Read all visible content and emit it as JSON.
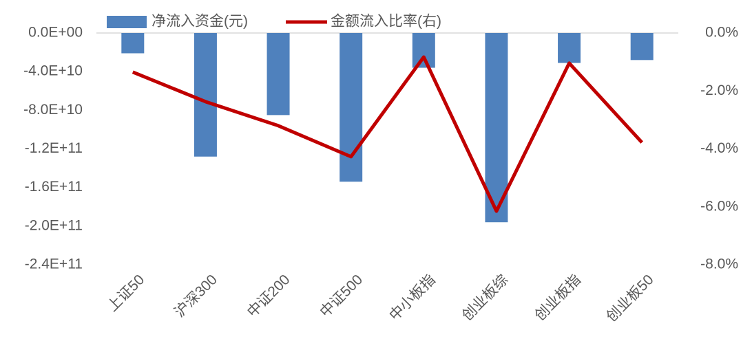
{
  "chart_data": {
    "type": "bar",
    "categories": [
      "上证50",
      "沪深300",
      "中证200",
      "中证500",
      "中小板指",
      "创业板综",
      "创业板指",
      "创业板50"
    ],
    "series": [
      {
        "name": "净流入资金(元)",
        "type": "bar",
        "color": "#4f81bd",
        "axis": "y",
        "values": [
          -21000000000.0,
          -128000000000.0,
          -85000000000.0,
          -154000000000.0,
          -36000000000.0,
          -196000000000.0,
          -31000000000.0,
          -28000000000.0
        ]
      },
      {
        "name": "金额流入比率(右)",
        "type": "line",
        "color": "#c00000",
        "axis": "y2",
        "values": [
          -1.35,
          -2.37,
          -3.2,
          -4.27,
          -0.83,
          -6.15,
          -1.04,
          -3.78
        ]
      }
    ],
    "ylim": [
      -240000000000.0,
      0
    ],
    "yticks": [
      {
        "value": 0,
        "label": "0.0E+00"
      },
      {
        "value": -40000000000.0,
        "label": "-4.0E+10"
      },
      {
        "value": -80000000000.0,
        "label": "-8.0E+10"
      },
      {
        "value": -120000000000.0,
        "label": "-1.2E+11"
      },
      {
        "value": -160000000000.0,
        "label": "-1.6E+11"
      },
      {
        "value": -200000000000.0,
        "label": "-2.0E+11"
      },
      {
        "value": -240000000000.0,
        "label": "-2.4E+11"
      }
    ],
    "y2lim": [
      -8,
      0
    ],
    "y2ticks": [
      {
        "value": 0,
        "label": "0.0%"
      },
      {
        "value": -2,
        "label": "-2.0%"
      },
      {
        "value": -4,
        "label": "-4.0%"
      },
      {
        "value": -6,
        "label": "-6.0%"
      },
      {
        "value": -8,
        "label": "-8.0%"
      }
    ],
    "legend": "top"
  }
}
